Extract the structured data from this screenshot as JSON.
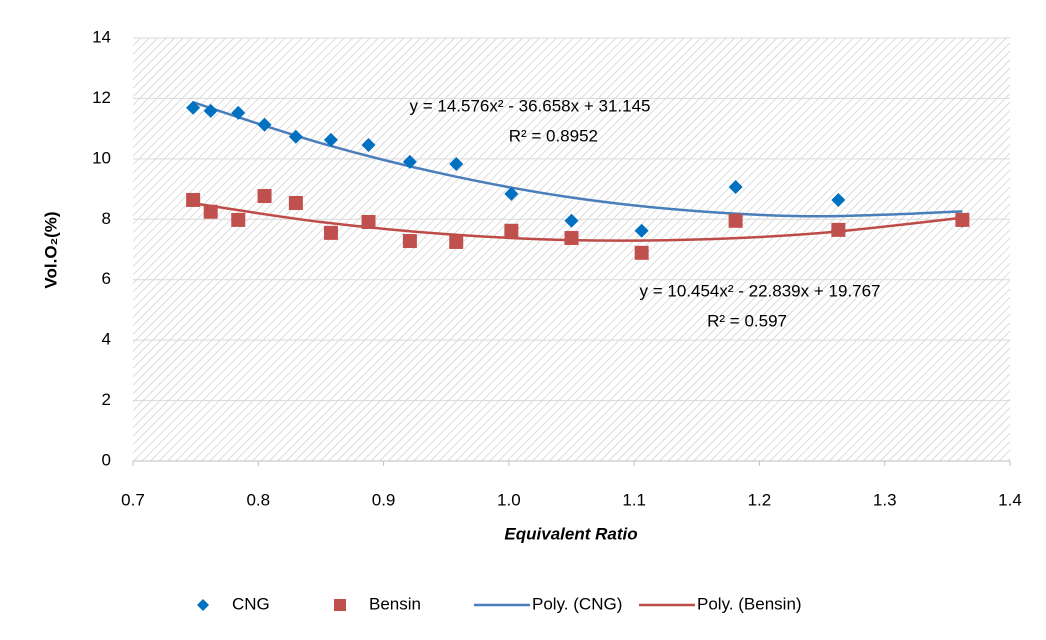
{
  "chart_data": {
    "type": "scatter",
    "xlabel": "Equivalent Ratio",
    "ylabel": "Vol.O₂(%)",
    "xlim": [
      0.7,
      1.4
    ],
    "xticks": [
      0.7,
      0.8,
      0.9,
      {
        "value": 1,
        "label": "1.0"
      },
      1.1,
      1.2,
      1.3,
      1.4
    ],
    "ylim": [
      0,
      14
    ],
    "yticks": [
      0,
      2,
      4,
      6,
      8,
      10,
      12,
      14
    ],
    "grid": true,
    "legend": "bottom",
    "series": [
      {
        "name": "CNG",
        "color": "#0070c0",
        "marker": "diamond",
        "x": [
          0.748,
          0.762,
          0.784,
          0.805,
          0.83,
          0.858,
          0.888,
          0.921,
          0.958,
          1.002,
          1.05,
          1.106,
          1.181,
          1.263,
          1.362
        ],
        "values": [
          11.69,
          11.59,
          11.52,
          11.13,
          10.73,
          10.63,
          10.46,
          9.9,
          9.83,
          8.84,
          7.95,
          7.62,
          9.07,
          8.64,
          7.95
        ]
      },
      {
        "name": "Bensin",
        "color": "#c0504d",
        "marker": "square",
        "x": [
          0.748,
          0.762,
          0.784,
          0.805,
          0.83,
          0.858,
          0.888,
          0.921,
          0.958,
          1.002,
          1.05,
          1.106,
          1.181,
          1.263,
          1.362
        ],
        "values": [
          8.64,
          8.25,
          7.98,
          8.77,
          8.54,
          7.55,
          7.91,
          7.28,
          7.25,
          7.62,
          7.38,
          6.89,
          7.95,
          7.65,
          7.98
        ]
      },
      {
        "name": "Poly. (CNG)",
        "color": "#4a7ebb",
        "marker": "line",
        "x": [
          0.748,
          0.85,
          0.95,
          1.05,
          1.15,
          1.25,
          1.362
        ],
        "values": [
          11.87,
          10.52,
          9.48,
          8.72,
          8.27,
          8.1,
          8.26
        ]
      },
      {
        "name": "Poly. (Bensin)",
        "color": "#be4b48",
        "marker": "line",
        "x": [
          0.748,
          0.85,
          0.95,
          1.05,
          1.15,
          1.25,
          1.362
        ],
        "values": [
          8.53,
          7.91,
          7.51,
          7.31,
          7.33,
          7.55,
          8.05
        ]
      }
    ],
    "annotations": [
      {
        "text": "y = 14.576x² - 36.658x + 31.145",
        "color": "#0070c0"
      },
      {
        "text": "R² = 0.8952",
        "color": "#0070c0"
      },
      {
        "text": "y = 10.454x² - 22.839x + 19.767",
        "color": "#c0504d"
      },
      {
        "text": "R² = 0.597",
        "color": "#c0504d"
      }
    ]
  }
}
